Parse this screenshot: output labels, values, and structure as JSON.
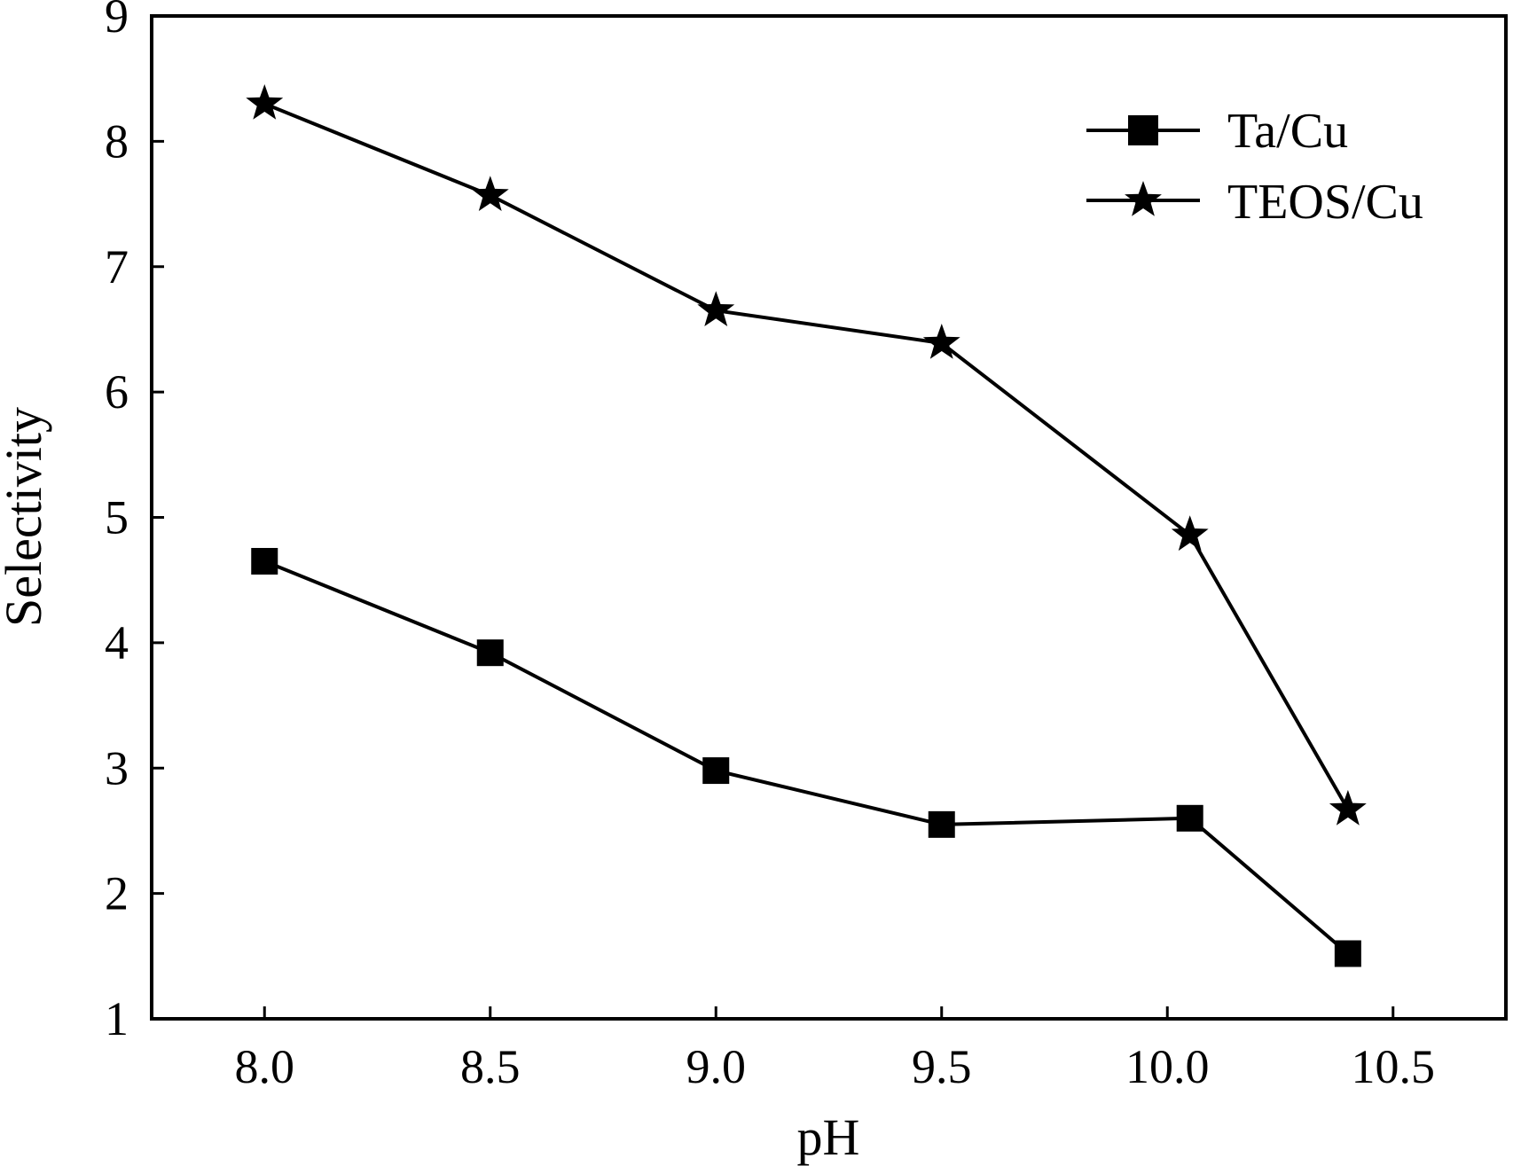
{
  "chart_data": {
    "type": "line",
    "xlabel": "pH",
    "ylabel": "Selectivity",
    "xlim": [
      7.75,
      10.75
    ],
    "ylim": [
      1,
      9
    ],
    "xticks": [
      {
        "value": 8.0,
        "label": "8.0"
      },
      {
        "value": 8.5,
        "label": "8.5"
      },
      {
        "value": 9.0,
        "label": "9.0"
      },
      {
        "value": 9.5,
        "label": "9.5"
      },
      {
        "value": 10.0,
        "label": "10.0"
      },
      {
        "value": 10.5,
        "label": "10.5"
      }
    ],
    "yticks": [
      {
        "value": 1,
        "label": "1"
      },
      {
        "value": 2,
        "label": "2"
      },
      {
        "value": 3,
        "label": "3"
      },
      {
        "value": 4,
        "label": "4"
      },
      {
        "value": 5,
        "label": "5"
      },
      {
        "value": 6,
        "label": "6"
      },
      {
        "value": 7,
        "label": "7"
      },
      {
        "value": 8,
        "label": "8"
      },
      {
        "value": 9,
        "label": "9"
      }
    ],
    "legend_position": "top-right",
    "grid": false,
    "series": [
      {
        "name": "Ta/Cu",
        "marker": "square",
        "color": "#000000",
        "x": [
          8.0,
          8.5,
          9.0,
          9.5,
          10.05,
          10.4
        ],
        "y": [
          4.65,
          3.92,
          2.98,
          2.55,
          2.6,
          1.52
        ]
      },
      {
        "name": "TEOS/Cu",
        "marker": "star",
        "color": "#000000",
        "x": [
          8.0,
          8.5,
          9.0,
          9.5,
          10.05,
          10.4
        ],
        "y": [
          8.3,
          7.57,
          6.65,
          6.39,
          4.86,
          2.67
        ]
      }
    ]
  }
}
